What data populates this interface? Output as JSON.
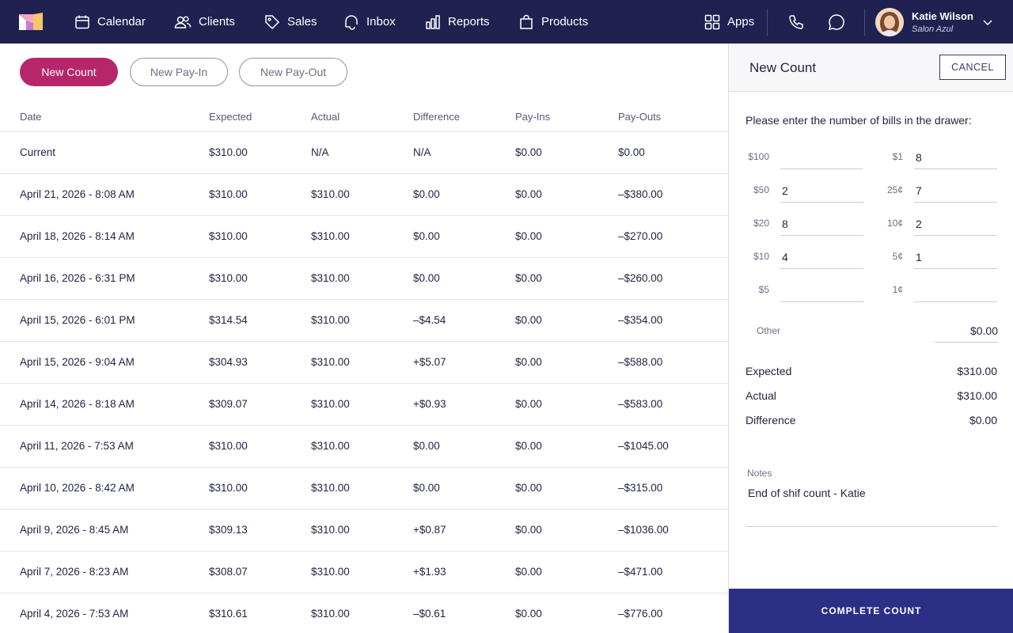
{
  "nav": {
    "items": [
      {
        "label": "Calendar",
        "icon": "calendar-icon"
      },
      {
        "label": "Clients",
        "icon": "clients-icon"
      },
      {
        "label": "Sales",
        "icon": "tag-icon"
      },
      {
        "label": "Inbox",
        "icon": "inbox-icon"
      },
      {
        "label": "Reports",
        "icon": "bar-chart-icon"
      },
      {
        "label": "Products",
        "icon": "shopping-bag-icon"
      }
    ],
    "apps_label": "Apps",
    "user": {
      "name": "Katie Wilson",
      "subtitle": "Salon Azul"
    }
  },
  "actions": {
    "new_count": "New Count",
    "new_pay_in": "New Pay-In",
    "new_pay_out": "New Pay-Out"
  },
  "table": {
    "headers": [
      "Date",
      "Expected",
      "Actual",
      "Difference",
      "Pay-Ins",
      "Pay-Outs"
    ],
    "rows": [
      [
        "Current",
        "$310.00",
        "N/A",
        "N/A",
        "$0.00",
        "$0.00"
      ],
      [
        "April 21, 2026 - 8:08 AM",
        "$310.00",
        "$310.00",
        "$0.00",
        "$0.00",
        "–$380.00"
      ],
      [
        "April 18, 2026 - 8:14 AM",
        "$310.00",
        "$310.00",
        "$0.00",
        "$0.00",
        "–$270.00"
      ],
      [
        "April 16, 2026 - 6:31 PM",
        "$310.00",
        "$310.00",
        "$0.00",
        "$0.00",
        "–$260.00"
      ],
      [
        "April 15, 2026 - 6:01 PM",
        "$314.54",
        "$310.00",
        "–$4.54",
        "$0.00",
        "–$354.00"
      ],
      [
        "April 15, 2026 - 9:04 AM",
        "$304.93",
        "$310.00",
        "+$5.07",
        "$0.00",
        "–$588.00"
      ],
      [
        "April 14, 2026 - 8:18 AM",
        "$309.07",
        "$310.00",
        "+$0.93",
        "$0.00",
        "–$583.00"
      ],
      [
        "April 11, 2026 - 7:53 AM",
        "$310.00",
        "$310.00",
        "$0.00",
        "$0.00",
        "–$1045.00"
      ],
      [
        "April 10, 2026 - 8:42 AM",
        "$310.00",
        "$310.00",
        "$0.00",
        "$0.00",
        "–$315.00"
      ],
      [
        "April 9, 2026 - 8:45 AM",
        "$309.13",
        "$310.00",
        "+$0.87",
        "$0.00",
        "–$1036.00"
      ],
      [
        "April 7, 2026 - 8:23 AM",
        "$308.07",
        "$310.00",
        "+$1.93",
        "$0.00",
        "–$471.00"
      ],
      [
        "April 4, 2026 - 7:53 AM",
        "$310.61",
        "$310.00",
        "–$0.61",
        "$0.00",
        "–$776.00"
      ]
    ]
  },
  "panel": {
    "title": "New Count",
    "cancel": "CANCEL",
    "instruction": "Please enter the number of bills in the drawer:",
    "bills": [
      {
        "label": "$100",
        "value": ""
      },
      {
        "label": "$50",
        "value": "2"
      },
      {
        "label": "$20",
        "value": "8"
      },
      {
        "label": "$10",
        "value": "4"
      },
      {
        "label": "$5",
        "value": ""
      }
    ],
    "coins": [
      {
        "label": "$1",
        "value": "8"
      },
      {
        "label": "25¢",
        "value": "7"
      },
      {
        "label": "10¢",
        "value": "2"
      },
      {
        "label": "5¢",
        "value": "1"
      },
      {
        "label": "1¢",
        "value": ""
      }
    ],
    "other_label": "Other",
    "other_value": "$0.00",
    "summary": [
      {
        "label": "Expected",
        "value": "$310.00"
      },
      {
        "label": "Actual",
        "value": "$310.00"
      },
      {
        "label": "Difference",
        "value": "$0.00"
      }
    ],
    "notes_label": "Notes",
    "notes_value": "End of shif count - Katie",
    "complete": "COMPLETE COUNT"
  },
  "colors": {
    "nav_bg": "#1f2150",
    "primary_pink": "#b6266b",
    "complete_blue": "#2c2f86"
  }
}
